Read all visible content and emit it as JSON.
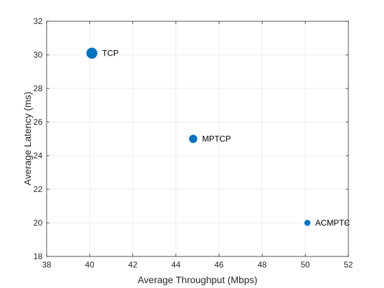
{
  "chart_data": {
    "type": "scatter",
    "xlabel": "Average Throughput (Mbps)",
    "ylabel": "Average Latency (ms)",
    "xlim": [
      38,
      52
    ],
    "ylim": [
      18,
      32
    ],
    "xticks": [
      38,
      40,
      42,
      44,
      46,
      48,
      50,
      52
    ],
    "yticks": [
      18,
      20,
      22,
      24,
      26,
      28,
      30,
      32
    ],
    "xtick_labels": [
      "38",
      "40",
      "42",
      "44",
      "46",
      "48",
      "50",
      "52"
    ],
    "ytick_labels": [
      "18",
      "20",
      "22",
      "24",
      "26",
      "28",
      "30",
      "32"
    ],
    "grid": true,
    "marker_color": "#0072BD",
    "points": [
      {
        "label": "TCP",
        "x": 40.1,
        "y": 30.1,
        "marker_size": "large"
      },
      {
        "label": "MPTCP",
        "x": 44.8,
        "y": 25.0,
        "marker_size": "medium"
      },
      {
        "label": "ACMPTC",
        "x": 50.1,
        "y": 20.0,
        "marker_size": "small"
      }
    ]
  }
}
